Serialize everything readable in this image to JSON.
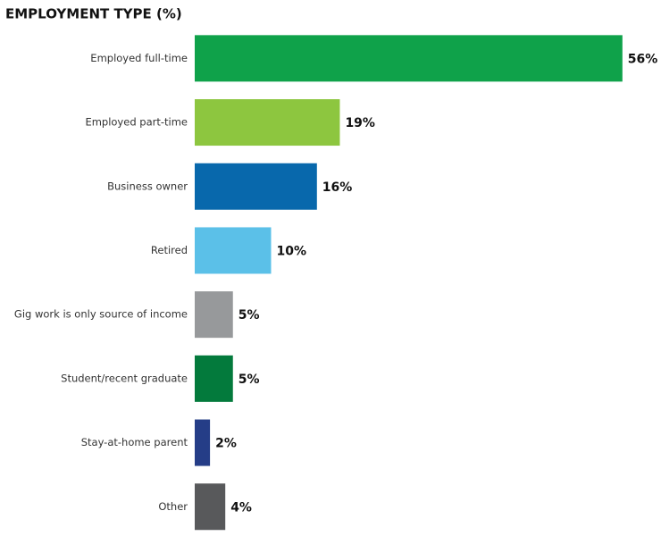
{
  "chart_data": {
    "type": "bar",
    "title": "EMPLOYMENT TYPE (%)",
    "categories": [
      "Employed full-time",
      "Employed part-time",
      "Business owner",
      "Retired",
      "Gig work is only source of income",
      "Student/recent graduate",
      "Stay-at-home parent",
      "Other"
    ],
    "values": [
      56,
      19,
      16,
      10,
      5,
      5,
      2,
      4
    ],
    "value_labels": [
      "56%",
      "19%",
      "16%",
      "10%",
      "5%",
      "5%",
      "2%",
      "4%"
    ],
    "colors": [
      "#0fa24a",
      "#8dc63f",
      "#0868ac",
      "#5bc0e8",
      "#97999b",
      "#037a3c",
      "#253d87",
      "#58595b"
    ]
  }
}
